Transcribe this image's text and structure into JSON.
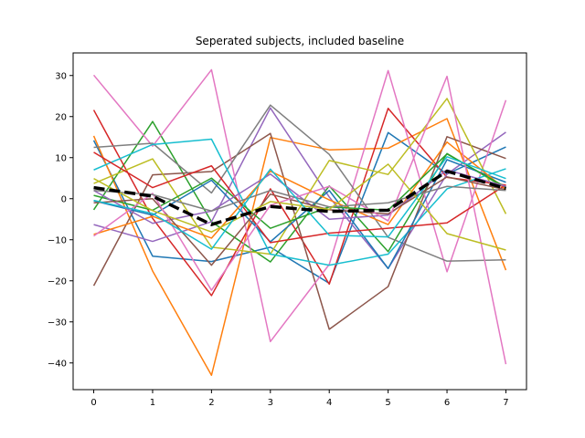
{
  "chart_data": {
    "type": "line",
    "title": "Seperated subjects, included baseline",
    "xlabel": "",
    "ylabel": "",
    "x": [
      0,
      1,
      2,
      3,
      4,
      5,
      6,
      7
    ],
    "xlim": [
      -0.35,
      7.35
    ],
    "ylim": [
      -46.5,
      35.5
    ],
    "xticks": [
      0,
      1,
      2,
      3,
      4,
      5,
      6,
      7
    ],
    "yticks": [
      -40,
      -30,
      -20,
      -10,
      0,
      10,
      20,
      30
    ],
    "grid": false,
    "legend": "none",
    "series": [
      {
        "color": "#1f77b4",
        "values": [
          14.2,
          -14,
          -15.3,
          -11.8,
          -20.6,
          16.1,
          6,
          12.6
        ]
      },
      {
        "color": "#ff7f0e",
        "values": [
          15.3,
          -17.6,
          -43,
          14.9,
          11.9,
          12.3,
          19.5,
          -17.4
        ]
      },
      {
        "color": "#2ca02c",
        "values": [
          -2.7,
          18.8,
          -5.6,
          -15.4,
          3.1,
          -12.9,
          11,
          2.5
        ]
      },
      {
        "color": "#d62728",
        "values": [
          21.6,
          -4.8,
          -23.6,
          2.4,
          -20.8,
          22,
          5.2,
          3.3
        ]
      },
      {
        "color": "#9467bd",
        "values": [
          -6.3,
          -10.4,
          -5.6,
          22.1,
          0.4,
          -17,
          6,
          16.2
        ]
      },
      {
        "color": "#8c564b",
        "values": [
          -21.2,
          5.8,
          6.6,
          15.9,
          -31.8,
          -21.4,
          15.1,
          9.8
        ]
      },
      {
        "color": "#e377c2",
        "values": [
          30.1,
          12.8,
          31.4,
          -34.8,
          -16,
          31.2,
          -17.8,
          24
        ]
      },
      {
        "color": "#7f7f7f",
        "values": [
          12.5,
          13.5,
          1.4,
          22.8,
          10.8,
          -9.4,
          -15.2,
          -14.9
        ]
      },
      {
        "color": "#bcbd22",
        "values": [
          3.7,
          9.7,
          -11.8,
          -13.5,
          9.3,
          5.9,
          24.4,
          -3.7
        ]
      },
      {
        "color": "#17becf",
        "values": [
          7,
          13.2,
          14.5,
          -13.5,
          -16.2,
          -13.5,
          2.4,
          7.3
        ]
      },
      {
        "color": "#1f77b4",
        "values": [
          -0.5,
          -4,
          4.5,
          -10.5,
          2,
          -17,
          9.5,
          4
        ]
      },
      {
        "color": "#ff7f0e",
        "values": [
          -8.7,
          -4.3,
          -9.6,
          6.7,
          -0.3,
          -6.3,
          13.8,
          2.2
        ]
      },
      {
        "color": "#2ca02c",
        "values": [
          0.8,
          -2.8,
          5,
          -7.2,
          -2,
          -2.8,
          10.9,
          2.8
        ]
      },
      {
        "color": "#d62728",
        "values": [
          11.3,
          2.7,
          8,
          -10.7,
          -8.4,
          -7.2,
          -5.9,
          3.4
        ]
      },
      {
        "color": "#9467bd",
        "values": [
          2,
          -6,
          -3,
          6,
          -5,
          -4,
          7,
          3
        ]
      },
      {
        "color": "#8c564b",
        "values": [
          -1,
          0,
          -16.2,
          1.1,
          -2.7,
          -3.7,
          5.3,
          2.2
        ]
      },
      {
        "color": "#e377c2",
        "values": [
          -9.1,
          1.3,
          -22.3,
          -1.6,
          3,
          -5.4,
          29.8,
          -40.3
        ]
      },
      {
        "color": "#7f7f7f",
        "values": [
          2,
          1,
          -3,
          2,
          -2,
          -1,
          3,
          2
        ]
      },
      {
        "color": "#bcbd22",
        "values": [
          4.9,
          -2.9,
          -8.1,
          -0.7,
          -2.6,
          8.4,
          -8.5,
          -12.5
        ]
      },
      {
        "color": "#17becf",
        "values": [
          -0.4,
          -3.6,
          -12.3,
          7.2,
          -8.9,
          -9.3,
          10.2,
          4.9
        ]
      }
    ],
    "baseline": {
      "color": "#000000",
      "style": "dashed",
      "values": [
        2.7,
        0.6,
        -6.3,
        -1.9,
        -3.1,
        -2.8,
        6.7,
        2.5
      ]
    }
  }
}
